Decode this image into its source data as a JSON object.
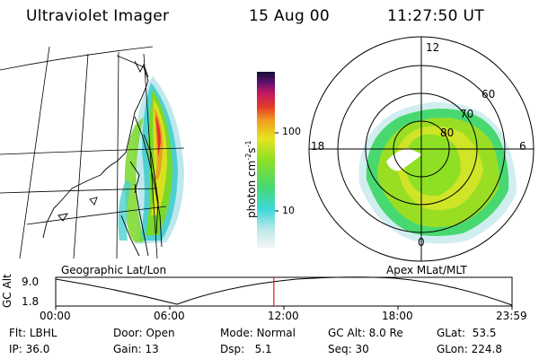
{
  "header": {
    "instrument": "Ultraviolet Imager",
    "date": "15 Aug 00",
    "time": "11:27:50 UT"
  },
  "colorbar": {
    "unit_label": "photon cm",
    "unit_exp1": "-2",
    "unit_s": "s",
    "unit_exp2": "-1",
    "ticks": [
      "100",
      "10"
    ]
  },
  "map_label": "Geographic Lat/Lon",
  "polar": {
    "label": "Apex MLat/MLT",
    "mlt_labels": [
      "12",
      "18",
      "6",
      "0"
    ],
    "lat_labels": [
      "60",
      "70",
      "80"
    ]
  },
  "orbit": {
    "axis_label": "GC Alt",
    "ymax": "9.0",
    "ymin": "1.8",
    "time_ticks": [
      "00:00",
      "06:00",
      "12:00",
      "18:00",
      "23:59"
    ],
    "cursor_time": "11:27:50",
    "cursor_fraction": 0.478
  },
  "status": {
    "flt_label": "Flt:",
    "flt": "LBHL",
    "ip_label": "IP:",
    "ip": "36.0",
    "door_label": "Door:",
    "door": "Open",
    "gain_label": "Gain:",
    "gain": "13",
    "mode_label": "Mode:",
    "mode": "Normal",
    "dsp_label": "Dsp:",
    "dsp": "5.1",
    "gcalt_label": "GC Alt:",
    "gcalt": "8.0 Re",
    "seq_label": "Seq:",
    "seq": "30",
    "glat_label": "GLat:",
    "glat": "53.5",
    "glon_label": "GLon:",
    "glon": "224.8"
  },
  "colors": {
    "cursor": "#e01818",
    "auroral_green": "#7ad82a",
    "auroral_yellow": "#e0e020",
    "auroral_cyan": "#3cd8d8"
  }
}
